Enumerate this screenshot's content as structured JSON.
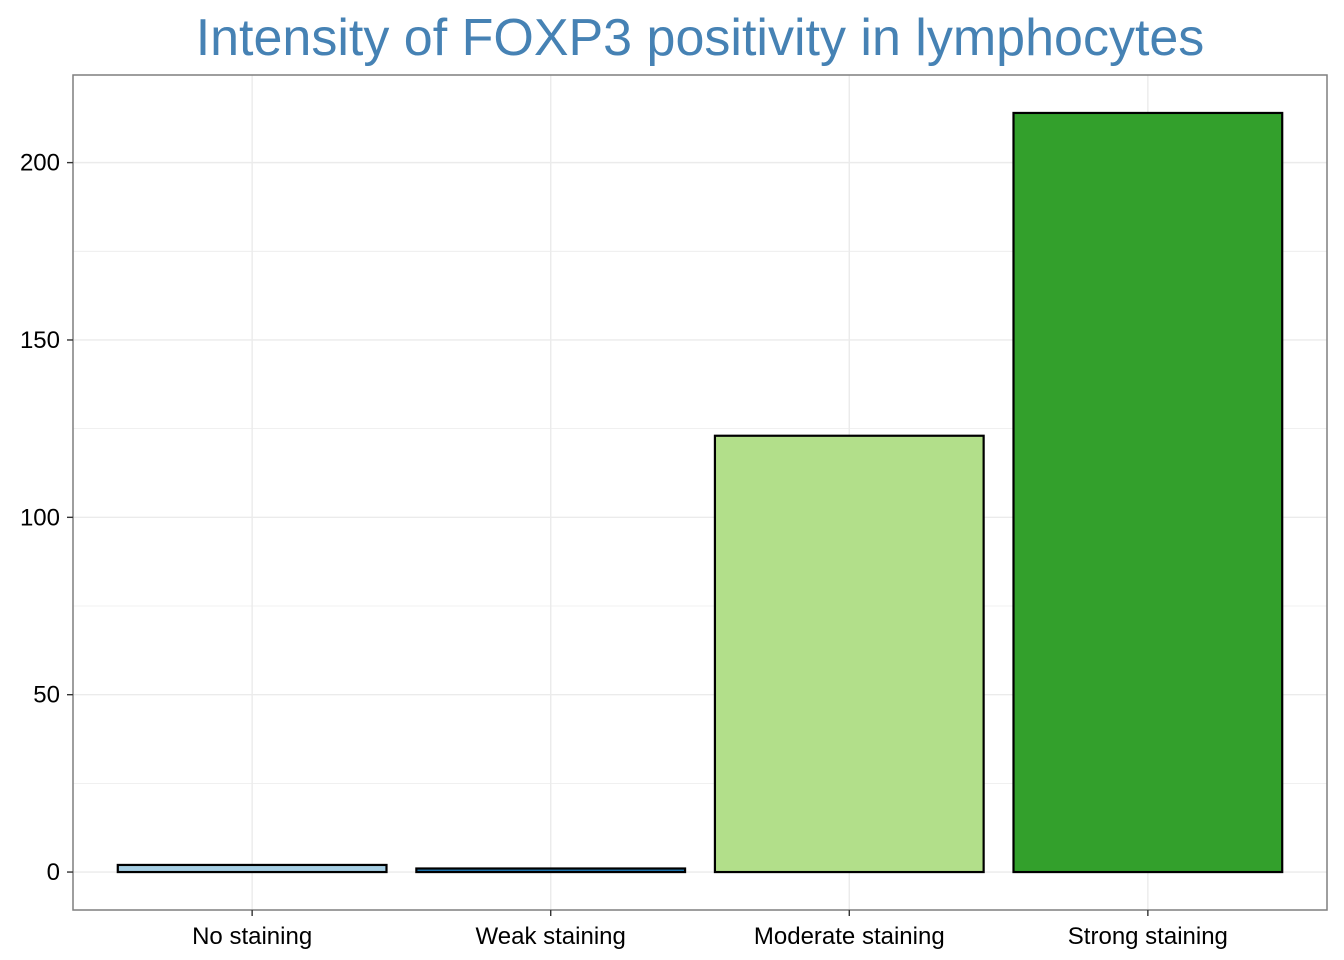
{
  "chart_data": {
    "type": "bar",
    "title": "Intensity of FOXP3 positivity in lymphocytes",
    "xlabel": "",
    "ylabel": "",
    "categories": [
      "No staining",
      "Weak staining",
      "Moderate staining",
      "Strong staining"
    ],
    "values": [
      2,
      1,
      123,
      214
    ],
    "ylim": [
      -10.7,
      224.7
    ],
    "yticks": [
      0,
      50,
      100,
      150,
      200
    ],
    "grid": true,
    "legend": "none",
    "colors": {
      "bars": [
        "#A6CEE3",
        "#1F78B4",
        "#B2DF8A",
        "#33A02C"
      ],
      "title": "#4682B4",
      "bar_outline": "#000000",
      "grid": "#EBEBEB",
      "panel_border": "#7F7F7F"
    }
  }
}
